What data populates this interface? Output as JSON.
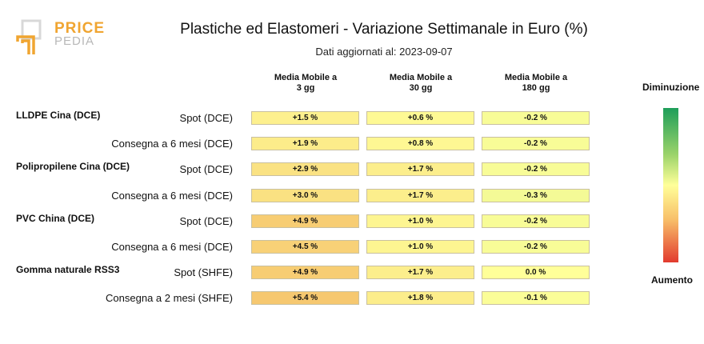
{
  "logo": {
    "word1": "PRICE",
    "word2": "PEDIA"
  },
  "title": "Plastiche ed Elastomeri - Variazione Settimanale in Euro (%)",
  "subtitle": "Dati aggiornati al: 2023-09-07",
  "columns": [
    {
      "line1": "Media Mobile a",
      "line2": "3 gg"
    },
    {
      "line1": "Media Mobile a",
      "line2": "30 gg"
    },
    {
      "line1": "Media Mobile a",
      "line2": "180 gg"
    }
  ],
  "scale": {
    "top": "Diminuzione",
    "bottom": "Aumento"
  },
  "colors": {
    "neutral": "#ffff99",
    "increase": "#f5c26b",
    "decrease": "#1e9e5a"
  },
  "chart_data": {
    "type": "table",
    "columns": [
      "Media Mobile a 3 gg",
      "Media Mobile a 30 gg",
      "Media Mobile a 180 gg"
    ],
    "rows": [
      {
        "group": "LLDPE Cina (DCE)",
        "label": "Spot (DCE)",
        "values": [
          1.5,
          0.6,
          -0.2
        ],
        "display": [
          "+1.5 %",
          "+0.6 %",
          "-0.2 %"
        ]
      },
      {
        "group": "",
        "label": "Consegna a 6 mesi (DCE)",
        "values": [
          1.9,
          0.8,
          -0.2
        ],
        "display": [
          "+1.9 %",
          "+0.8 %",
          "-0.2 %"
        ]
      },
      {
        "group": "Polipropilene Cina (DCE)",
        "label": "Spot (DCE)",
        "values": [
          2.9,
          1.7,
          -0.2
        ],
        "display": [
          "+2.9 %",
          "+1.7 %",
          "-0.2 %"
        ]
      },
      {
        "group": "",
        "label": "Consegna a 6 mesi (DCE)",
        "values": [
          3.0,
          1.7,
          -0.3
        ],
        "display": [
          "+3.0 %",
          "+1.7 %",
          "-0.3 %"
        ]
      },
      {
        "group": "PVC China (DCE)",
        "label": "Spot (DCE)",
        "values": [
          4.9,
          1.0,
          -0.2
        ],
        "display": [
          "+4.9 %",
          "+1.0 %",
          "-0.2 %"
        ]
      },
      {
        "group": "",
        "label": "Consegna a 6 mesi (DCE)",
        "values": [
          4.5,
          1.0,
          -0.2
        ],
        "display": [
          "+4.5 %",
          "+1.0 %",
          "-0.2 %"
        ]
      },
      {
        "group": "Gomma naturale RSS3",
        "label": "Spot (SHFE)",
        "values": [
          4.9,
          1.7,
          0.0
        ],
        "display": [
          "+4.9 %",
          "+1.7 %",
          "0.0 %"
        ]
      },
      {
        "group": "",
        "label": "Consegna a 2 mesi (SHFE)",
        "values": [
          5.4,
          1.8,
          -0.1
        ],
        "display": [
          "+5.4 %",
          "+1.8 %",
          "-0.1 %"
        ]
      }
    ]
  }
}
